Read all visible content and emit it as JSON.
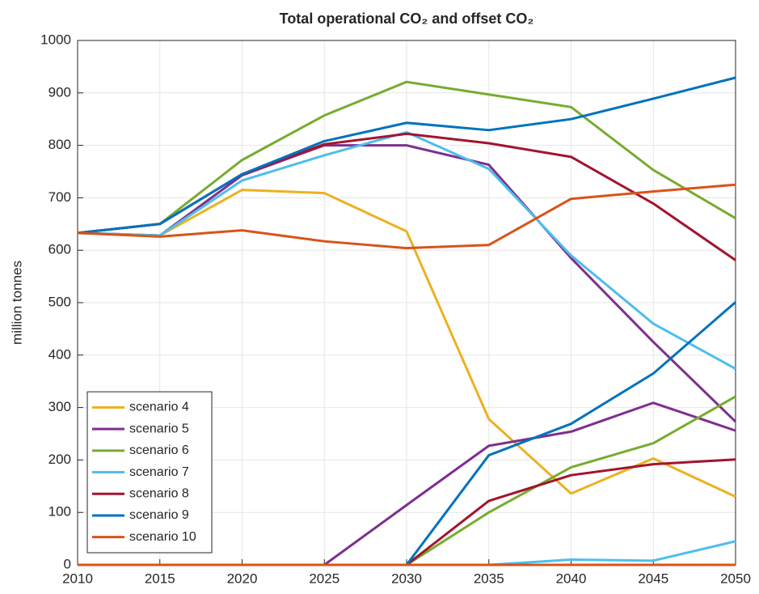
{
  "chart_data": {
    "type": "line",
    "title": "Total operational CO₂ and offset CO₂",
    "y_label": "million tonnes",
    "x": [
      2010,
      2015,
      2020,
      2025,
      2030,
      2035,
      2040,
      2045,
      2050
    ],
    "xlim": [
      2010,
      2050
    ],
    "xticks": [
      2010,
      2015,
      2020,
      2025,
      2030,
      2035,
      2040,
      2045,
      2050
    ],
    "ylim": [
      0,
      1000
    ],
    "yticks": [
      0,
      100,
      200,
      300,
      400,
      500,
      600,
      700,
      800,
      900,
      1000
    ],
    "grid": true,
    "legend": "lower-left",
    "series": [
      {
        "name": "scenario 4",
        "color": "#EDB120",
        "values": [
          633,
          628,
          715,
          709,
          636,
          278,
          136,
          203,
          130
        ]
      },
      {
        "name": "scenario 5",
        "color": "#7E2F8E",
        "values": [
          633,
          628,
          743,
          800,
          800,
          763,
          585,
          425,
          273
        ]
      },
      {
        "name": "scenario 6",
        "color": "#77AC30",
        "values": [
          633,
          650,
          772,
          857,
          921,
          897,
          873,
          753,
          661
        ]
      },
      {
        "name": "scenario 7",
        "color": "#4DBEEE",
        "values": [
          633,
          628,
          733,
          781,
          825,
          755,
          590,
          460,
          374
        ]
      },
      {
        "name": "scenario 8",
        "color": "#A2142F",
        "values": [
          633,
          650,
          745,
          802,
          822,
          804,
          778,
          689,
          581
        ]
      },
      {
        "name": "scenario 9",
        "color": "#0072BD",
        "values": [
          633,
          650,
          745,
          808,
          843,
          829,
          850,
          889,
          929
        ]
      },
      {
        "name": "scenario 10",
        "color": "#D95319",
        "values": [
          633,
          626,
          638,
          617,
          604,
          610,
          698,
          712,
          725
        ]
      },
      {
        "color": "#EDB120",
        "values": [
          0,
          0,
          0,
          0,
          0,
          0,
          0,
          0,
          0
        ]
      },
      {
        "color": "#7E2F8E",
        "values": [
          0,
          0,
          0,
          0,
          114,
          227,
          254,
          309,
          256
        ]
      },
      {
        "color": "#77AC30",
        "values": [
          0,
          0,
          0,
          0,
          0,
          100,
          186,
          232,
          321
        ]
      },
      {
        "color": "#4DBEEE",
        "values": [
          0,
          0,
          0,
          0,
          0,
          0,
          10,
          8,
          45
        ]
      },
      {
        "color": "#A2142F",
        "values": [
          0,
          0,
          0,
          0,
          0,
          122,
          171,
          192,
          201
        ]
      },
      {
        "color": "#0072BD",
        "values": [
          0,
          0,
          0,
          0,
          0,
          209,
          269,
          365,
          501
        ]
      },
      {
        "color": "#D95319",
        "values": [
          0,
          0,
          0,
          0,
          0,
          0,
          0,
          0,
          0
        ]
      }
    ]
  }
}
